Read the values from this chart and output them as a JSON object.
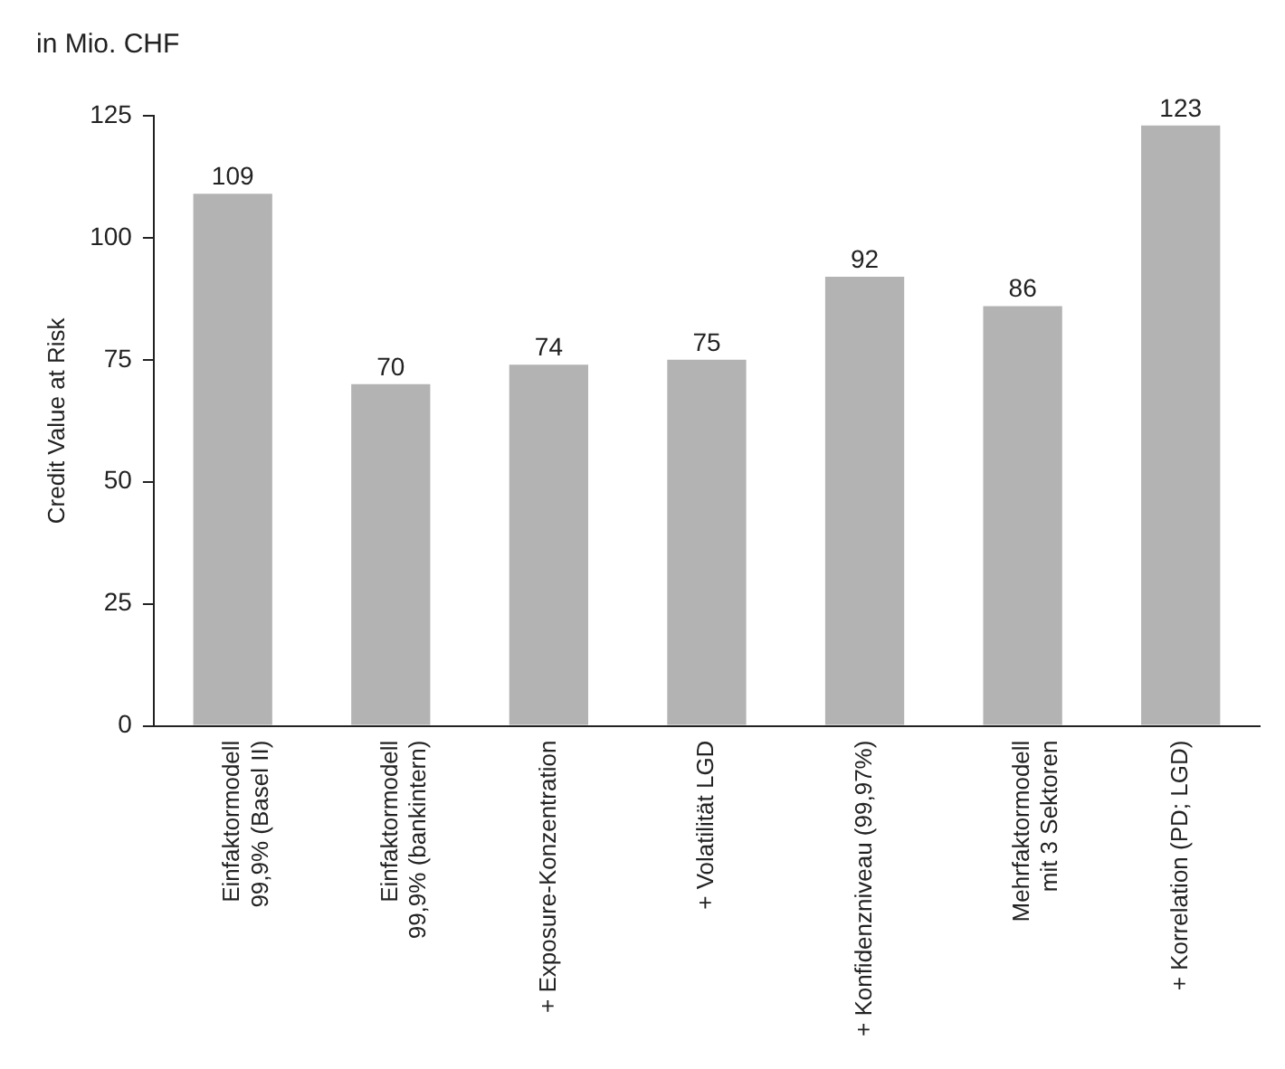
{
  "chart_data": {
    "type": "bar",
    "title": "in Mio. CHF",
    "ylabel": "Credit Value at Risk",
    "categories": [
      "Einfaktormodell\n99,9% (Basel II)",
      "Einfaktormodell\n99,9% (bankintern)",
      "+ Exposure-Konzentration",
      "+ Volatilität LGD",
      "+ Konfidenzniveau (99,97%)",
      "Mehrfaktormodell\nmit 3 Sektoren",
      "+ Korrelation (PD; LGD)"
    ],
    "values": [
      109,
      70,
      74,
      75,
      92,
      86,
      123
    ],
    "color": "#b3b3b3",
    "ylim": [
      0,
      125
    ],
    "yticks": [
      0,
      25,
      50,
      75,
      100,
      125
    ],
    "grid": false,
    "legend": false,
    "data_labels": true
  }
}
